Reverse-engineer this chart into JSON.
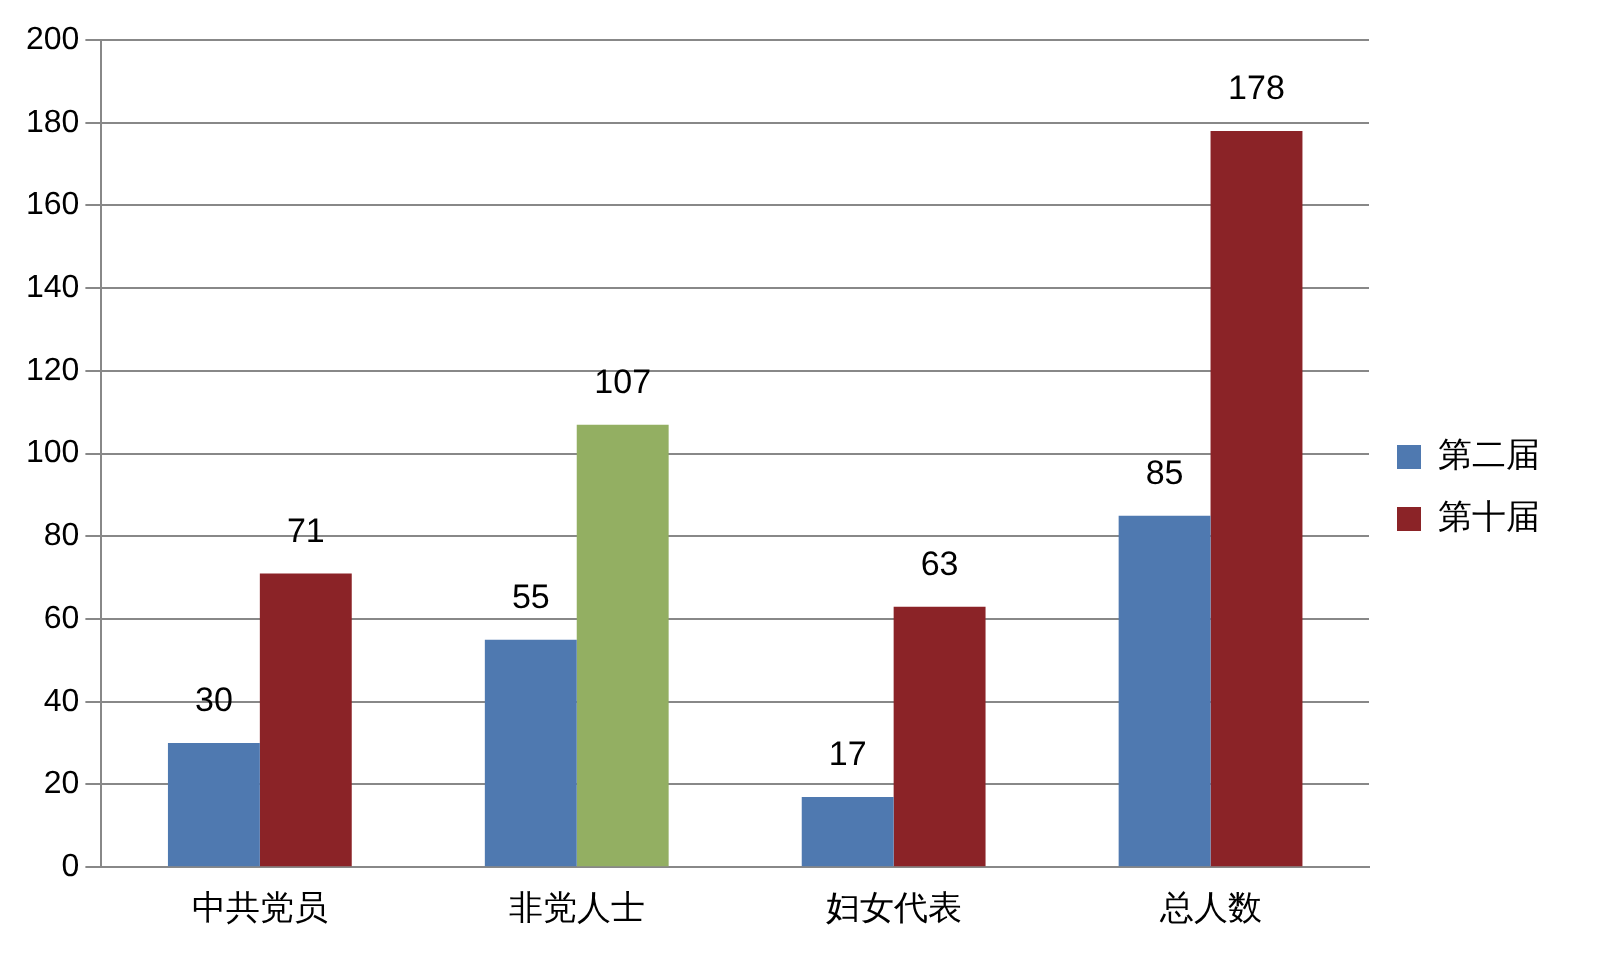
{
  "chart_data": {
    "type": "bar",
    "categories": [
      "中共党员",
      "非党人士",
      "妇女代表",
      "总人数"
    ],
    "series": [
      {
        "name": "第二届",
        "color": "#4f79b0",
        "values": [
          30,
          55,
          17,
          85
        ]
      },
      {
        "name": "第十届",
        "color": "#8b2327",
        "colors": [
          "#8b2327",
          "#93af62",
          "#8b2327",
          "#8b2327"
        ],
        "values": [
          71,
          107,
          63,
          178
        ]
      }
    ],
    "ylim": [
      0,
      200
    ],
    "yticks": [
      0,
      20,
      40,
      60,
      80,
      100,
      120,
      140,
      160,
      180,
      200
    ],
    "grid": "y",
    "legend": "right",
    "data_labels": true
  }
}
